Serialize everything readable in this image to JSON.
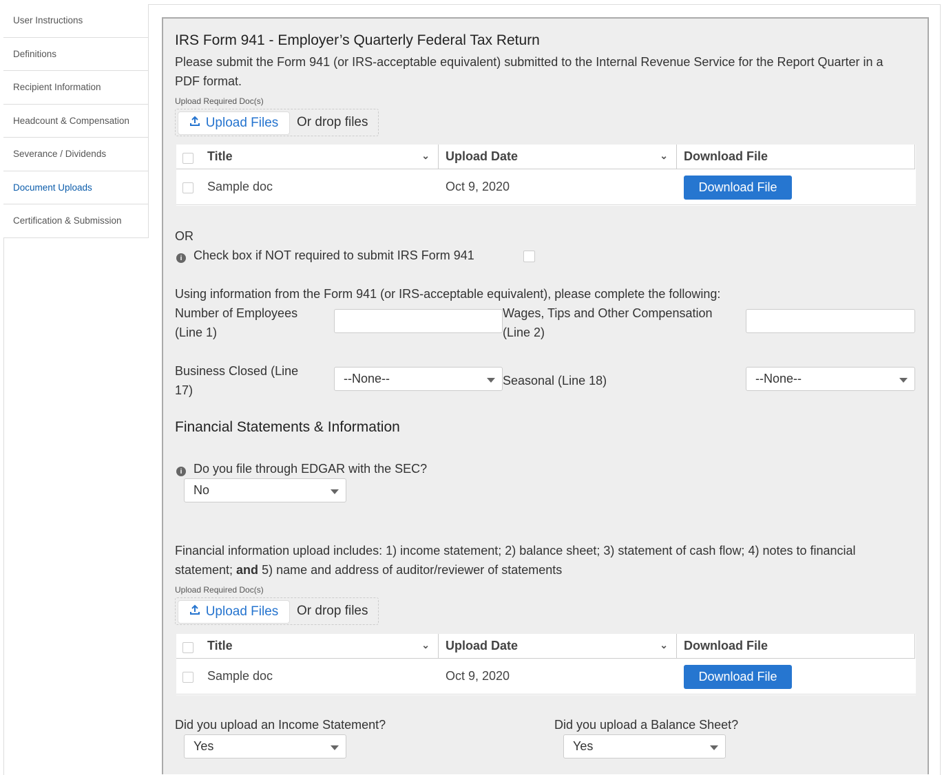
{
  "sidebar": {
    "items": [
      {
        "label": "User Instructions"
      },
      {
        "label": "Definitions"
      },
      {
        "label": "Recipient Information"
      },
      {
        "label": "Headcount & Compensation"
      },
      {
        "label": "Severance / Dividends"
      },
      {
        "label": "Document Uploads",
        "active": true
      },
      {
        "label": "Certification & Submission"
      }
    ]
  },
  "form941": {
    "title": "IRS Form 941 - Employer’s Quarterly Federal Tax Return",
    "description_line1": "Please submit the Form 941 (or IRS-acceptable equivalent) submitted to the Internal Revenue Service for the Report Quarter in a",
    "description_line2": "PDF format.",
    "upload_label": "Upload Required Doc(s)",
    "upload_button": "Upload Files",
    "drop_text": "Or drop files",
    "table": {
      "headers": [
        "Title",
        "Upload Date",
        "Download File"
      ],
      "rows": [
        {
          "title": "Sample doc",
          "date": "Oct 9, 2020",
          "action": "Download File"
        }
      ]
    },
    "or_text": "OR",
    "not_required_label": "Check box if NOT required to submit IRS Form 941",
    "instructions": "Using information from the Form 941 (or IRS-acceptable equivalent), please complete the following:",
    "employees_label_1": "Number of Employees",
    "employees_label_2": "(Line 1)",
    "employees_value": "",
    "wages_label_1": "Wages, Tips and Other Compensation",
    "wages_label_2": "(Line 2)",
    "wages_value": "",
    "closed_label_1": "Business Closed (Line",
    "closed_label_2": "17)",
    "closed_value": "--None--",
    "seasonal_label": "Seasonal (Line 18)",
    "seasonal_value": "--None--"
  },
  "financial": {
    "title": "Financial Statements & Information",
    "edgar_label": "Do you file through EDGAR with the SEC?",
    "edgar_value": "No",
    "includes_line1": "Financial information upload includes: 1) income statement; 2) balance sheet; 3) statement of cash flow; 4) notes to financial",
    "includes_line2a": "statement; ",
    "includes_line2b": "and",
    "includes_line2c": " 5) name and address of auditor/reviewer of statements",
    "upload_label": "Upload Required Doc(s)",
    "upload_button": "Upload Files",
    "drop_text": "Or drop files",
    "table": {
      "headers": [
        "Title",
        "Upload Date",
        "Download File"
      ],
      "rows": [
        {
          "title": "Sample doc",
          "date": "Oct 9, 2020",
          "action": "Download File"
        }
      ]
    },
    "income_label": "Did you upload an Income Statement?",
    "income_value": "Yes",
    "balance_label": "Did you upload a Balance Sheet?",
    "balance_value": "Yes"
  },
  "colors": {
    "accent": "#2676d0",
    "panel_bg": "#eeeeee",
    "active_nav": "#0b5cab"
  }
}
